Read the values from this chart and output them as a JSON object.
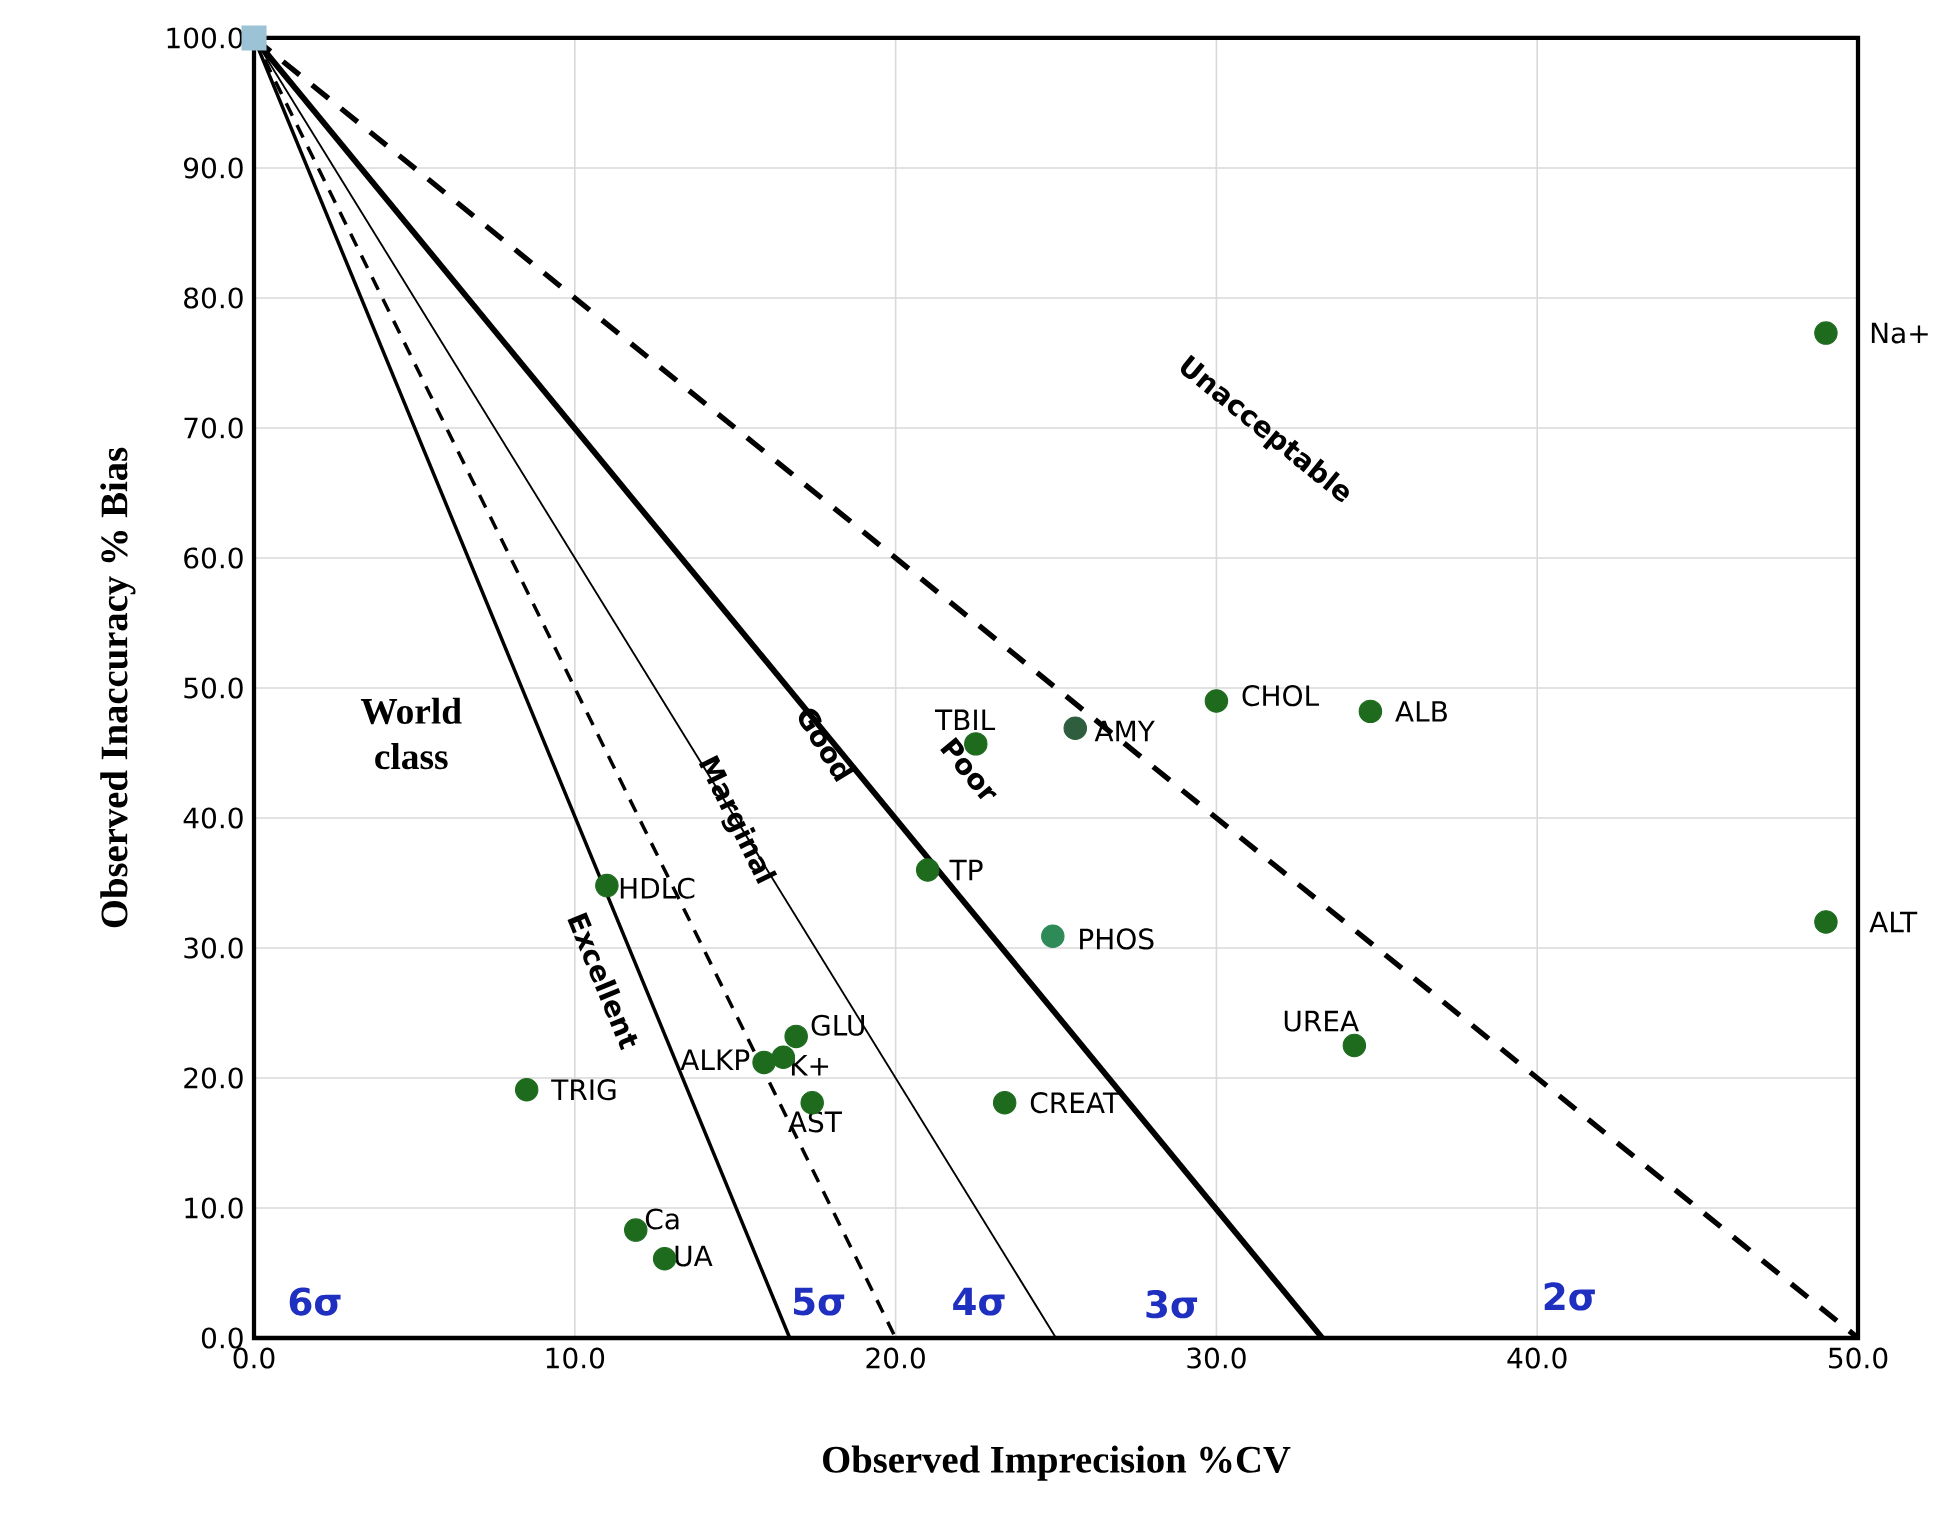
{
  "chart_data": {
    "type": "scatter",
    "xlabel": "Observed Imprecision %CV",
    "ylabel": "Observed Inaccuracy % Bias",
    "xlim": [
      0,
      50
    ],
    "ylim": [
      0,
      100
    ],
    "xticks": [
      {
        "value": 0,
        "label": "0.0"
      },
      {
        "value": 10,
        "label": "10.0"
      },
      {
        "value": 20,
        "label": "20.0"
      },
      {
        "value": 30,
        "label": "30.0"
      },
      {
        "value": 40,
        "label": "40.0"
      },
      {
        "value": 50,
        "label": "50.0"
      }
    ],
    "yticks": [
      {
        "value": 0,
        "label": "0.0"
      },
      {
        "value": 10,
        "label": "10.0"
      },
      {
        "value": 20,
        "label": "20.0"
      },
      {
        "value": 30,
        "label": "30.0"
      },
      {
        "value": 40,
        "label": "40.0"
      },
      {
        "value": 50,
        "label": "50.0"
      },
      {
        "value": 60,
        "label": "60.0"
      },
      {
        "value": 70,
        "label": "70.0"
      },
      {
        "value": 80,
        "label": "80.0"
      },
      {
        "value": 90,
        "label": "90.0"
      },
      {
        "value": 100,
        "label": "100.0"
      }
    ],
    "grid": true,
    "series": [
      {
        "type": "line",
        "color": "#000000",
        "line_style": "solid",
        "x": [
          0,
          16.7
        ],
        "values": [
          100,
          0
        ]
      },
      {
        "type": "line",
        "color": "#000000",
        "line_style": "dashed",
        "x": [
          0,
          20
        ],
        "values": [
          100,
          0
        ]
      },
      {
        "type": "line",
        "color": "#000000",
        "line_style": "solid",
        "x": [
          0,
          25
        ],
        "values": [
          100,
          0
        ]
      },
      {
        "type": "line",
        "color": "#000000",
        "line_style": "solid",
        "x": [
          0,
          33.3
        ],
        "values": [
          100,
          0
        ]
      },
      {
        "type": "line",
        "color": "#000000",
        "line_style": "dashed",
        "x": [
          0,
          50
        ],
        "values": [
          100,
          0
        ]
      },
      {
        "type": "scatter",
        "marker": "square",
        "color": "#9cc3d5",
        "x": [
          0
        ],
        "values": [
          100
        ]
      },
      {
        "marker": "circle",
        "x": [
          49,
          49,
          34.8,
          30,
          25.6,
          22.5,
          21,
          24.9,
          34.3,
          23.4,
          11,
          16.9,
          16.5,
          15.9,
          17.4,
          8.5,
          11.9,
          12.8
        ],
        "values": [
          77.3,
          32,
          48.2,
          49,
          46.9,
          45.7,
          36,
          30.9,
          22.5,
          18.1,
          34.8,
          23.2,
          21.6,
          21.2,
          18.1,
          19.1,
          8.3,
          6.1
        ],
        "colors": [
          "#1e6b1e",
          "#1e6b1e",
          "#1e6b1e",
          "#1e6b1e",
          "#2e5e3e",
          "#1e6b1e",
          "#1e6b1e",
          "#2e8b57",
          "#1e6b1e",
          "#1e6b1e",
          "#1e6b1e",
          "#1e6b1e",
          "#1e6b1e",
          "#1e6b1e",
          "#1e6b1e",
          "#1e6b1e",
          "#1e6b1e",
          "#1e6b1e"
        ]
      }
    ],
    "annotations": [
      {
        "text": "Na+",
        "x": 49,
        "y": 77.3
      },
      {
        "text": "ALT",
        "x": 49,
        "y": 32
      },
      {
        "text": "ALB",
        "x": 34.8,
        "y": 48.2
      },
      {
        "text": "CHOL",
        "x": 30,
        "y": 49
      },
      {
        "text": "AMY",
        "x": 25.6,
        "y": 46.9
      },
      {
        "text": "TBIL",
        "x": 22.5,
        "y": 45.7
      },
      {
        "text": "TP",
        "x": 21,
        "y": 36
      },
      {
        "text": "PHOS",
        "x": 24.9,
        "y": 30.9
      },
      {
        "text": "UREA",
        "x": 34.3,
        "y": 22.5
      },
      {
        "text": "CREAT",
        "x": 23.4,
        "y": 18.1
      },
      {
        "text": "HDLC",
        "x": 11,
        "y": 34.8
      },
      {
        "text": "GLU",
        "x": 16.9,
        "y": 23.2
      },
      {
        "text": "K+",
        "x": 16.5,
        "y": 21.6
      },
      {
        "text": "ALKP",
        "x": 15.9,
        "y": 21.2
      },
      {
        "text": "AST",
        "x": 17.4,
        "y": 18.1
      },
      {
        "text": "TRIG",
        "x": 8.5,
        "y": 19.1
      },
      {
        "text": "Ca",
        "x": 11.9,
        "y": 8.3
      },
      {
        "text": "UA",
        "x": 12.8,
        "y": 6.1
      },
      "World class",
      "Excellent",
      "Marginal",
      "Good",
      "Poor",
      "Unacceptable",
      "6σ",
      "5σ",
      "4σ",
      "3σ",
      "2σ"
    ]
  }
}
